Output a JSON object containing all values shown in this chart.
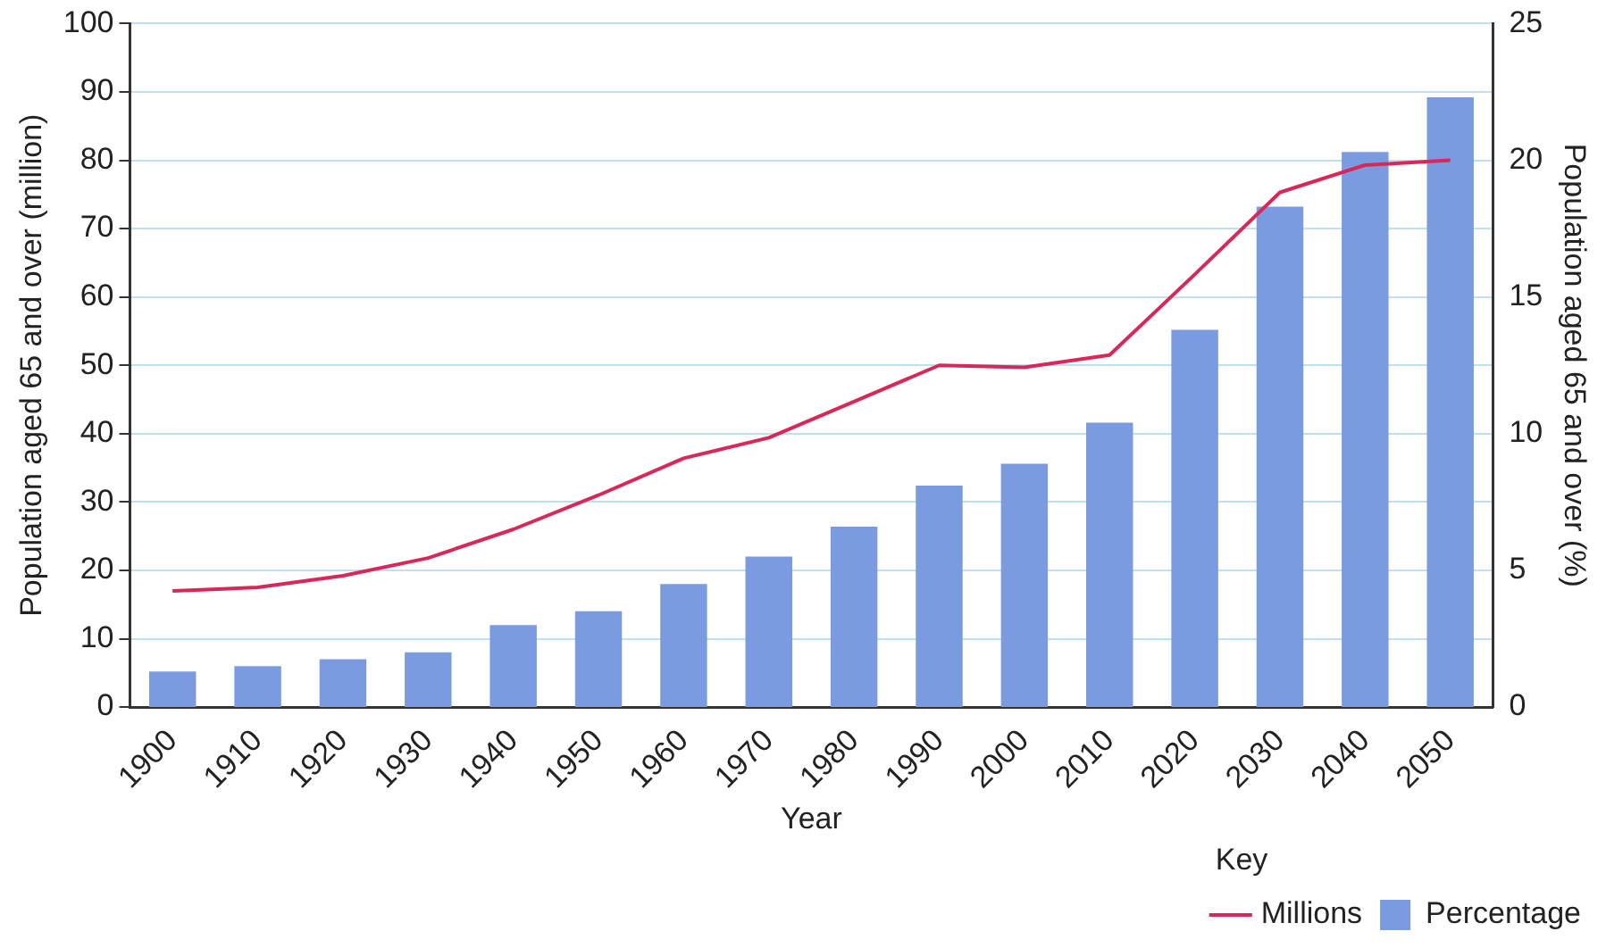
{
  "chart_data": {
    "type": "bar",
    "xlabel": "Year",
    "ylabel": "Population aged 65 and over (million)",
    "y2label": "Population aged 65 and over (%)",
    "legend_title": "Key",
    "categories": [
      "1900",
      "1910",
      "1920",
      "1930",
      "1940",
      "1950",
      "1960",
      "1970",
      "1980",
      "1990",
      "2000",
      "2010",
      "2020",
      "2030",
      "2040",
      "2050"
    ],
    "series": [
      {
        "name": "Millions",
        "type": "line",
        "axis": "y",
        "color": "#d8285a",
        "values": [
          17,
          17.5,
          19.2,
          21.8,
          26,
          31,
          36.4,
          39.4,
          44.7,
          50,
          49.7,
          51.5,
          63.3,
          75.3,
          79.3,
          80
        ]
      },
      {
        "name": "Percentage",
        "axis": "y2",
        "color": "#7b9be0",
        "values": [
          1.3,
          1.5,
          1.75,
          2,
          3,
          3.5,
          4.5,
          5.5,
          6.6,
          8.1,
          8.9,
          10.4,
          13.8,
          18.3,
          20.3,
          22.3
        ]
      }
    ],
    "ylim": [
      0,
      100
    ],
    "yticks": [
      0,
      10,
      20,
      30,
      40,
      50,
      60,
      70,
      80,
      90,
      100
    ],
    "y2lim": [
      0,
      25
    ],
    "y2ticks": [
      0,
      5,
      10,
      15,
      20,
      25
    ],
    "grid": "y",
    "legend": "bottom right",
    "marker": "none",
    "line_style": "solid"
  }
}
